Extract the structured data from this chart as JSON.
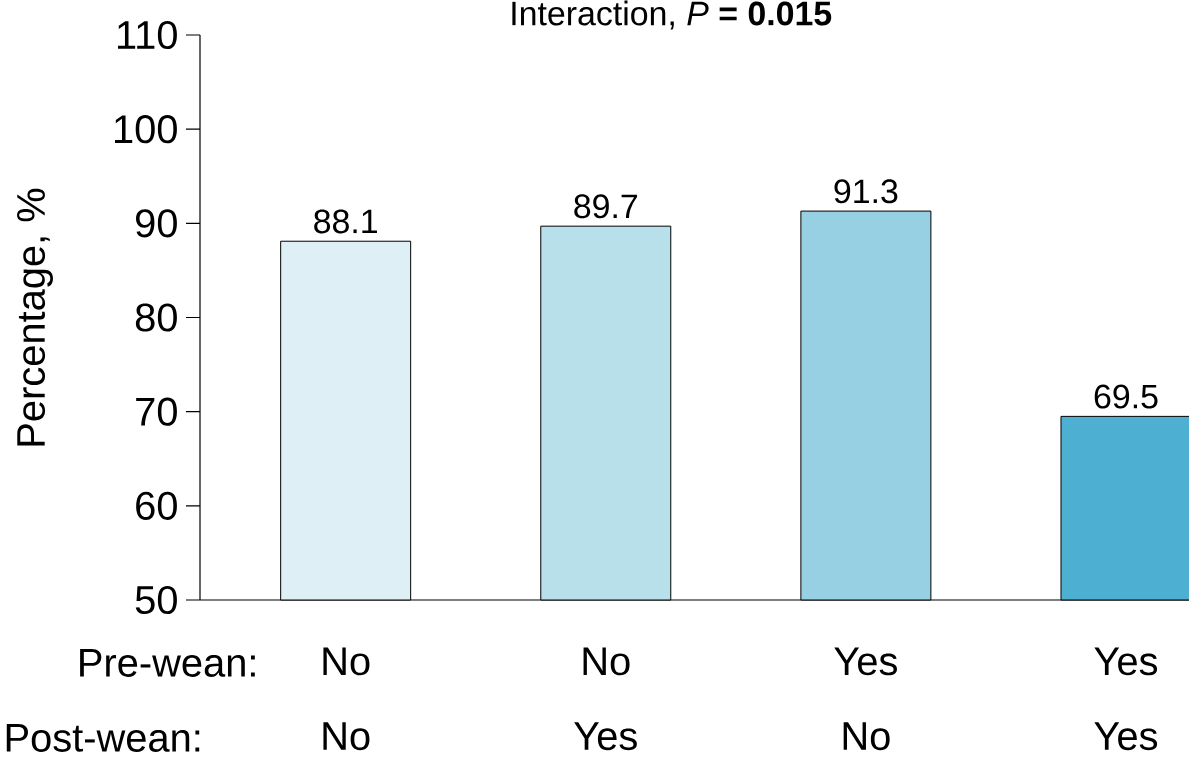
{
  "chart_data": {
    "type": "bar",
    "title": "Interaction, *P* **= 0.015**",
    "ylabel": "Percentage, %",
    "categories": [
      "No",
      "No",
      "Yes",
      "Yes"
    ],
    "values": [
      88.1,
      89.7,
      91.3,
      69.5
    ],
    "colors": [
      "#deeff5",
      "#b8e0ea",
      "#96d0e2",
      "#4db0d2"
    ],
    "ylim": [
      50,
      110
    ],
    "yticks": [
      50,
      60,
      70,
      80,
      90,
      100,
      110
    ],
    "data_labels": true,
    "grid": false,
    "annotations": [
      "Pre-wean:",
      "Post-wean:",
      "No",
      "Yes",
      "No",
      "Yes"
    ]
  }
}
